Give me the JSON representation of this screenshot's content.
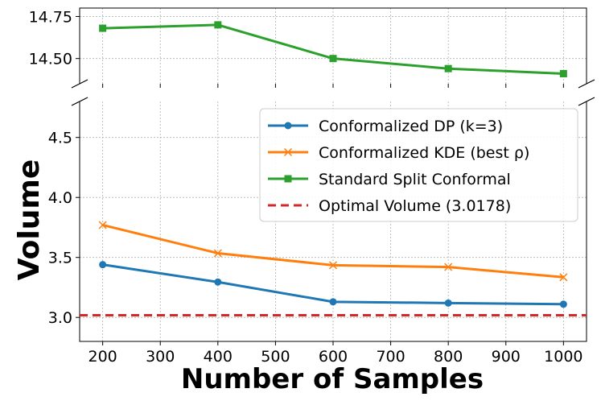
{
  "chart_data": {
    "type": "line",
    "xlabel": "Number of Samples",
    "ylabel": "Volume",
    "x": [
      200,
      400,
      600,
      800,
      1000
    ],
    "xlim": [
      160,
      1040
    ],
    "xticks": [
      200,
      300,
      400,
      500,
      600,
      700,
      800,
      900,
      1000
    ],
    "broken_axis": true,
    "upper_panel": {
      "ylim": [
        14.35,
        14.8
      ],
      "yticks": [
        "14.50",
        "14.75"
      ]
    },
    "lower_panel": {
      "ylim": [
        2.8,
        4.8
      ],
      "yticks": [
        "3.0",
        "3.5",
        "4.0",
        "4.5"
      ]
    },
    "grid": true,
    "legend_position": "upper-right",
    "series": [
      {
        "name": "Conformalized DP (k=3)",
        "color": "#1f77b4",
        "marker": "circle",
        "values": [
          3.44,
          3.295,
          3.13,
          3.12,
          3.11
        ]
      },
      {
        "name": "Conformalized KDE (best ρ)",
        "color": "#ff7f0e",
        "marker": "x",
        "values": [
          3.77,
          3.535,
          3.435,
          3.42,
          3.335
        ]
      },
      {
        "name": "Standard Split Conformal",
        "color": "#2ca02c",
        "marker": "square",
        "values": [
          14.68,
          14.7,
          14.5,
          14.44,
          14.41
        ]
      },
      {
        "name": "Optimal Volume (3.0178)",
        "color": "#d62728",
        "style": "dashed",
        "value": 3.0178
      }
    ]
  }
}
